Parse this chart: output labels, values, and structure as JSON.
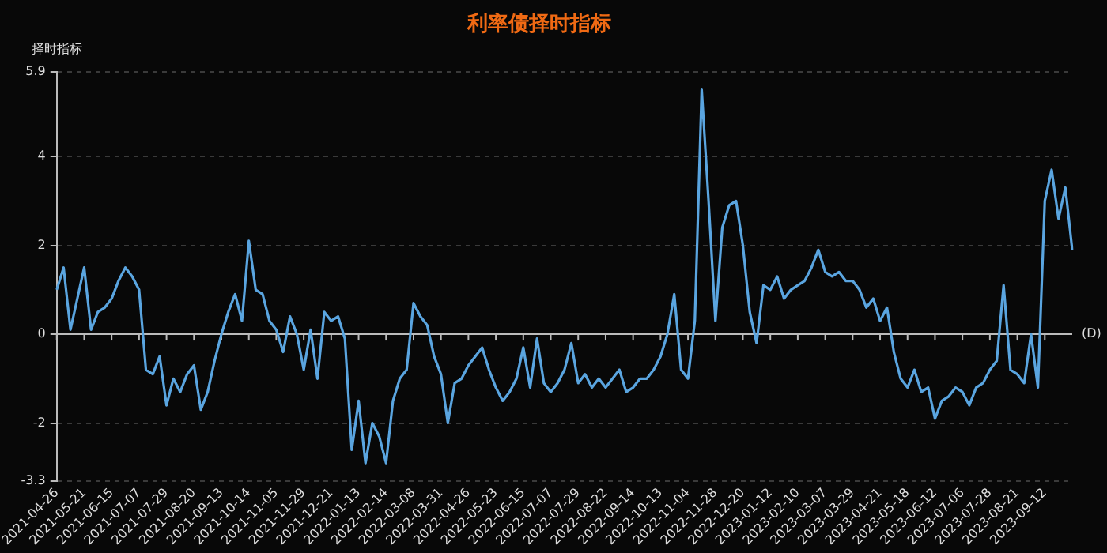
{
  "chart_data": {
    "type": "line",
    "title": "利率债择时指标",
    "ylabel": "择时指标",
    "xlabel": "(D)",
    "categories": [
      "2021-04-26",
      null,
      null,
      null,
      "2021-05-21",
      null,
      null,
      null,
      "2021-06-15",
      null,
      null,
      null,
      "2021-07-07",
      null,
      null,
      null,
      "2021-07-29",
      null,
      null,
      null,
      "2021-08-20",
      null,
      null,
      null,
      "2021-09-13",
      null,
      null,
      null,
      "2021-10-14",
      null,
      null,
      null,
      "2021-11-05",
      null,
      null,
      null,
      "2021-11-29",
      null,
      null,
      null,
      "2021-12-21",
      null,
      null,
      null,
      "2022-01-13",
      null,
      null,
      null,
      "2022-02-14",
      null,
      null,
      null,
      "2022-03-08",
      null,
      null,
      null,
      "2022-03-31",
      null,
      null,
      null,
      "2022-04-26",
      null,
      null,
      null,
      "2022-05-23",
      null,
      null,
      null,
      "2022-06-15",
      null,
      null,
      null,
      "2022-07-07",
      null,
      null,
      null,
      "2022-07-29",
      null,
      null,
      null,
      "2022-08-22",
      null,
      null,
      null,
      "2022-09-14",
      null,
      null,
      null,
      "2022-10-13",
      null,
      null,
      null,
      "2022-11-04",
      null,
      null,
      null,
      "2022-11-28",
      null,
      null,
      null,
      "2022-12-20",
      null,
      null,
      null,
      "2023-01-12",
      null,
      null,
      null,
      "2023-02-10",
      null,
      null,
      null,
      "2023-03-07",
      null,
      null,
      null,
      "2023-03-29",
      null,
      null,
      null,
      "2023-04-21",
      null,
      null,
      null,
      "2023-05-18",
      null,
      null,
      null,
      "2023-06-12",
      null,
      null,
      null,
      "2023-07-06",
      null,
      null,
      null,
      "2023-07-28",
      null,
      null,
      null,
      "2023-08-21",
      null,
      null,
      null,
      "2023-09-12",
      null,
      null,
      null,
      null
    ],
    "series": [
      {
        "color": "#5aa5e0",
        "values": [
          1.0,
          1.5,
          0.1,
          0.8,
          1.5,
          0.1,
          0.5,
          0.6,
          0.8,
          1.2,
          1.5,
          1.3,
          1.0,
          -0.8,
          -0.9,
          -0.5,
          -1.6,
          -1.0,
          -1.3,
          -0.9,
          -0.7,
          -1.7,
          -1.3,
          -0.6,
          0.0,
          0.5,
          0.9,
          0.3,
          2.1,
          1.0,
          0.9,
          0.3,
          0.1,
          -0.4,
          0.4,
          0.0,
          -0.8,
          0.1,
          -1.0,
          0.5,
          0.3,
          0.4,
          -0.1,
          -2.6,
          -1.5,
          -2.9,
          -2.0,
          -2.3,
          -2.9,
          -1.5,
          -1.0,
          -0.8,
          0.7,
          0.4,
          0.2,
          -0.5,
          -0.9,
          -2.0,
          -1.1,
          -1.0,
          -0.7,
          -0.5,
          -0.3,
          -0.8,
          -1.2,
          -1.5,
          -1.3,
          -1.0,
          -0.3,
          -1.2,
          -0.1,
          -1.1,
          -1.3,
          -1.1,
          -0.8,
          -0.2,
          -1.1,
          -0.9,
          -1.2,
          -1.0,
          -1.2,
          -1.0,
          -0.8,
          -1.3,
          -1.2,
          -1.0,
          -1.0,
          -0.8,
          -0.5,
          0.0,
          0.9,
          -0.8,
          -1.0,
          0.3,
          5.5,
          3.0,
          0.3,
          2.4,
          2.9,
          3.0,
          2.0,
          0.5,
          -0.2,
          1.1,
          1.0,
          1.3,
          0.8,
          1.0,
          1.1,
          1.2,
          1.5,
          1.9,
          1.4,
          1.3,
          1.4,
          1.2,
          1.2,
          1.0,
          0.6,
          0.8,
          0.3,
          0.6,
          -0.4,
          -1.0,
          -1.2,
          -0.8,
          -1.3,
          -1.2,
          -1.9,
          -1.5,
          -1.4,
          -1.2,
          -1.3,
          -1.6,
          -1.2,
          -1.1,
          -0.8,
          -0.6,
          1.1,
          -0.8,
          -0.9,
          -1.1,
          0.0,
          -1.2,
          3.0,
          3.7,
          2.6,
          3.3,
          1.9
        ]
      }
    ],
    "ylim": [
      -3.3,
      5.9
    ],
    "yticks": [
      5.9,
      4,
      2,
      0,
      -2,
      -3.3
    ],
    "grid": "y",
    "legend": false,
    "marker": "none",
    "line_style": "solid"
  }
}
